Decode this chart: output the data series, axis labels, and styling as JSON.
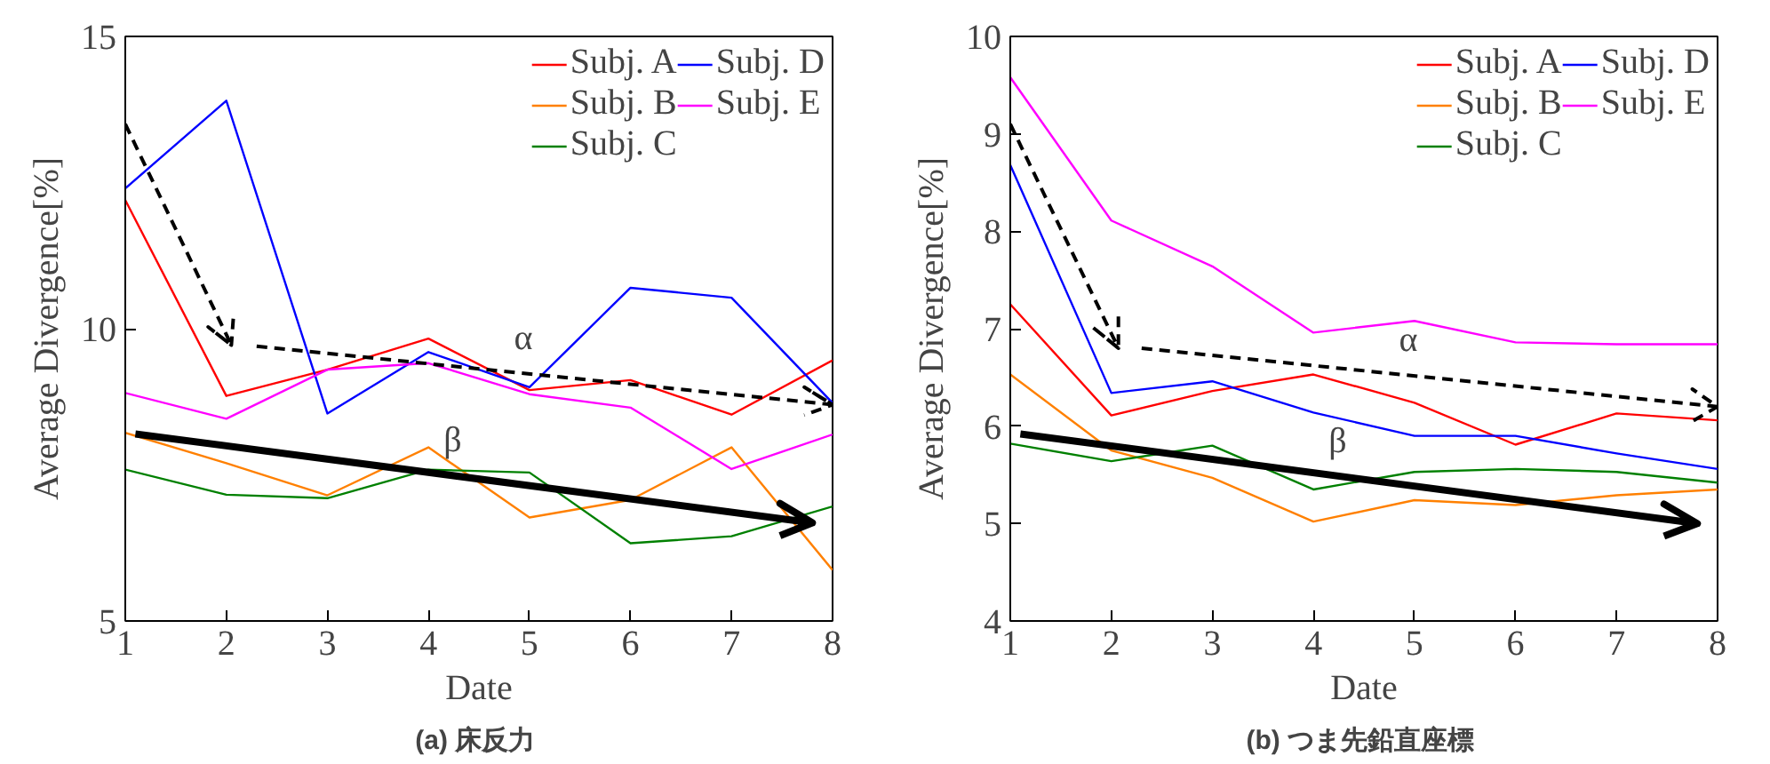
{
  "chart_data": [
    {
      "type": "line",
      "title": "(a)  床反力",
      "xlabel": "Date",
      "ylabel": "Average Divergence[%]",
      "x": [
        1,
        2,
        3,
        4,
        5,
        6,
        7,
        8
      ],
      "xlim": [
        1,
        8
      ],
      "xticks": [
        1,
        2,
        3,
        4,
        5,
        6,
        7,
        8
      ],
      "ylim": [
        5,
        15
      ],
      "yticks": [
        5,
        10,
        15
      ],
      "legend": "top right",
      "grid": false,
      "series": [
        {
          "name": "Subj. A",
          "color": "#ff0000",
          "values": [
            12.2,
            8.85,
            9.3,
            9.83,
            8.95,
            9.12,
            8.53,
            9.46
          ]
        },
        {
          "name": "Subj. B",
          "color": "#ff8000",
          "values": [
            8.22,
            7.7,
            7.15,
            7.97,
            6.77,
            7.07,
            7.97,
            5.87
          ]
        },
        {
          "name": "Subj. C",
          "color": "#008000",
          "values": [
            7.59,
            7.16,
            7.1,
            7.59,
            7.54,
            6.33,
            6.45,
            6.96
          ]
        },
        {
          "name": "Subj. D",
          "color": "#0000ff",
          "values": [
            12.4,
            13.9,
            8.55,
            9.6,
            9.0,
            10.7,
            10.53,
            8.73
          ]
        },
        {
          "name": "Subj. E",
          "color": "#ff00ff",
          "values": [
            8.9,
            8.46,
            9.3,
            9.41,
            8.88,
            8.65,
            7.6,
            8.19
          ]
        },
        {
          "color": "#000000",
          "line_style": "dashed",
          "x": [
            1,
            2.05,
            1.82,
            2.05,
            2.07
          ],
          "values": [
            13.5,
            9.72,
            10.03,
            9.72,
            10.2
          ]
        },
        {
          "color": "#000000",
          "line_style": "dashed",
          "x": [
            2.3,
            8,
            7.72,
            8,
            7.72
          ],
          "values": [
            9.7,
            8.7,
            9.0,
            8.7,
            8.52
          ]
        },
        {
          "color": "#000000",
          "line_style": "solid",
          "x": [
            1.1,
            7.8,
            7.48,
            7.8,
            7.48
          ],
          "values": [
            8.2,
            6.68,
            7.01,
            6.68,
            6.46
          ]
        }
      ],
      "annotations": [
        "α",
        "β"
      ]
    },
    {
      "type": "line",
      "title": "(b)  つま先鉛直座標",
      "xlabel": "Date",
      "ylabel": "Average Divergence[%]",
      "x": [
        1,
        2,
        3,
        4,
        5,
        6,
        7,
        8
      ],
      "xlim": [
        1,
        8
      ],
      "xticks": [
        1,
        2,
        3,
        4,
        5,
        6,
        7,
        8
      ],
      "ylim": [
        4,
        10
      ],
      "yticks": [
        4,
        5,
        6,
        7,
        8,
        9,
        10
      ],
      "legend": "top right",
      "grid": false,
      "series": [
        {
          "name": "Subj. A",
          "color": "#ff0000",
          "values": [
            7.25,
            6.11,
            6.36,
            6.53,
            6.24,
            5.81,
            6.13,
            6.06
          ]
        },
        {
          "name": "Subj. B",
          "color": "#ff8000",
          "values": [
            6.53,
            5.75,
            5.47,
            5.02,
            5.24,
            5.19,
            5.29,
            5.35
          ]
        },
        {
          "name": "Subj. C",
          "color": "#008000",
          "values": [
            5.82,
            5.64,
            5.8,
            5.35,
            5.53,
            5.56,
            5.53,
            5.42
          ]
        },
        {
          "name": "Subj. D",
          "color": "#0000ff",
          "values": [
            8.68,
            6.34,
            6.46,
            6.14,
            5.9,
            5.9,
            5.72,
            5.56
          ]
        },
        {
          "name": "Subj. E",
          "color": "#ff00ff",
          "values": [
            9.58,
            8.11,
            7.64,
            6.96,
            7.08,
            6.86,
            6.84,
            6.84
          ]
        },
        {
          "color": "#000000",
          "line_style": "dashed",
          "x": [
            1,
            2.07,
            1.81,
            2.07,
            2.07
          ],
          "values": [
            9.1,
            6.8,
            7.02,
            6.8,
            7.15
          ]
        },
        {
          "color": "#000000",
          "line_style": "dashed",
          "x": [
            2.3,
            8,
            7.75,
            8,
            7.75
          ],
          "values": [
            6.8,
            6.2,
            6.38,
            6.2,
            6.05
          ]
        },
        {
          "color": "#000000",
          "line_style": "solid",
          "x": [
            1.1,
            7.8,
            7.47,
            7.8,
            7.47
          ],
          "values": [
            5.92,
            5.0,
            5.2,
            5.0,
            4.87
          ]
        }
      ],
      "annotations": [
        "α",
        "β"
      ]
    }
  ]
}
